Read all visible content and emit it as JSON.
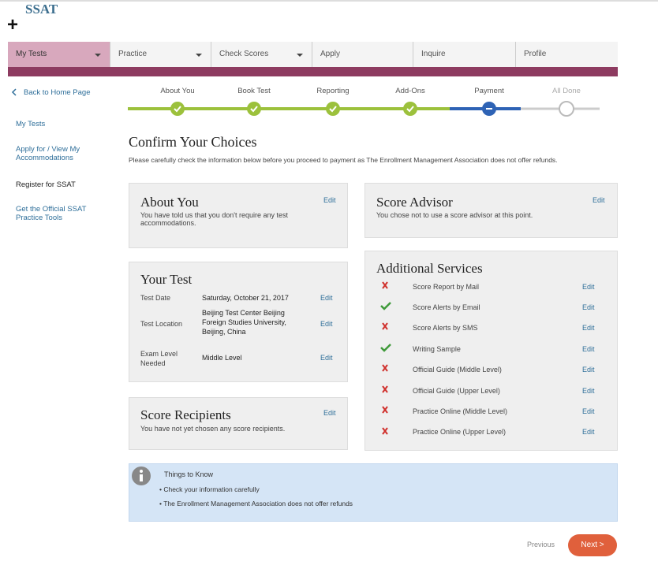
{
  "header": {
    "logo": "SSAT",
    "plus": "+"
  },
  "nav": [
    "My Tests",
    "Practice",
    "Check Scores",
    "Apply",
    "Inquire",
    "Profile"
  ],
  "sidebar": {
    "back": "Back to Home Page",
    "links": [
      "My Tests",
      "Apply for / View My Accommodations",
      "Register for SSAT",
      "Get the Official SSAT Practice Tools"
    ]
  },
  "steps": [
    "About You",
    "Book Test",
    "Reporting",
    "Add-Ons",
    "Payment",
    "All Done"
  ],
  "heading": "Confirm Your Choices",
  "description": "Please carefully check the information below before you proceed to payment as The Enrollment Management Association does not offer refunds.",
  "edit": "Edit",
  "about_you": {
    "title": "About You",
    "text": "You have told us that you don't require any test accommodations."
  },
  "score_advisor": {
    "title": "Score Advisor",
    "text": "You chose not to use a score advisor at this point."
  },
  "your_test": {
    "title": "Your Test",
    "rows": [
      [
        "Test Date",
        "Saturday, October 21, 2017"
      ],
      [
        "Test Location",
        "Beijing Test Center Beijing Foreign Studies University, Beijing, China"
      ],
      [
        "Exam Level Needed",
        "Middle Level"
      ]
    ]
  },
  "additional_services": {
    "title": "Additional Services",
    "items": [
      "Score Report by Mail",
      "Score Alerts by Email",
      "Score Alerts by SMS",
      "Writing Sample",
      "Official Guide (Middle Level)",
      "Official Guide (Upper Level)",
      "Practice Online (Middle Level)",
      "Practice Online (Upper Level)"
    ]
  },
  "score_recipients": {
    "title": "Score Recipients",
    "text": "You have not yet chosen any score recipients."
  },
  "things_to_know": {
    "title": "Things to Know",
    "items": [
      "Check your information carefully",
      "The Enrollment Management Association does not offer refunds"
    ]
  },
  "buttons": {
    "previous": "Previous",
    "next": "Next >"
  }
}
